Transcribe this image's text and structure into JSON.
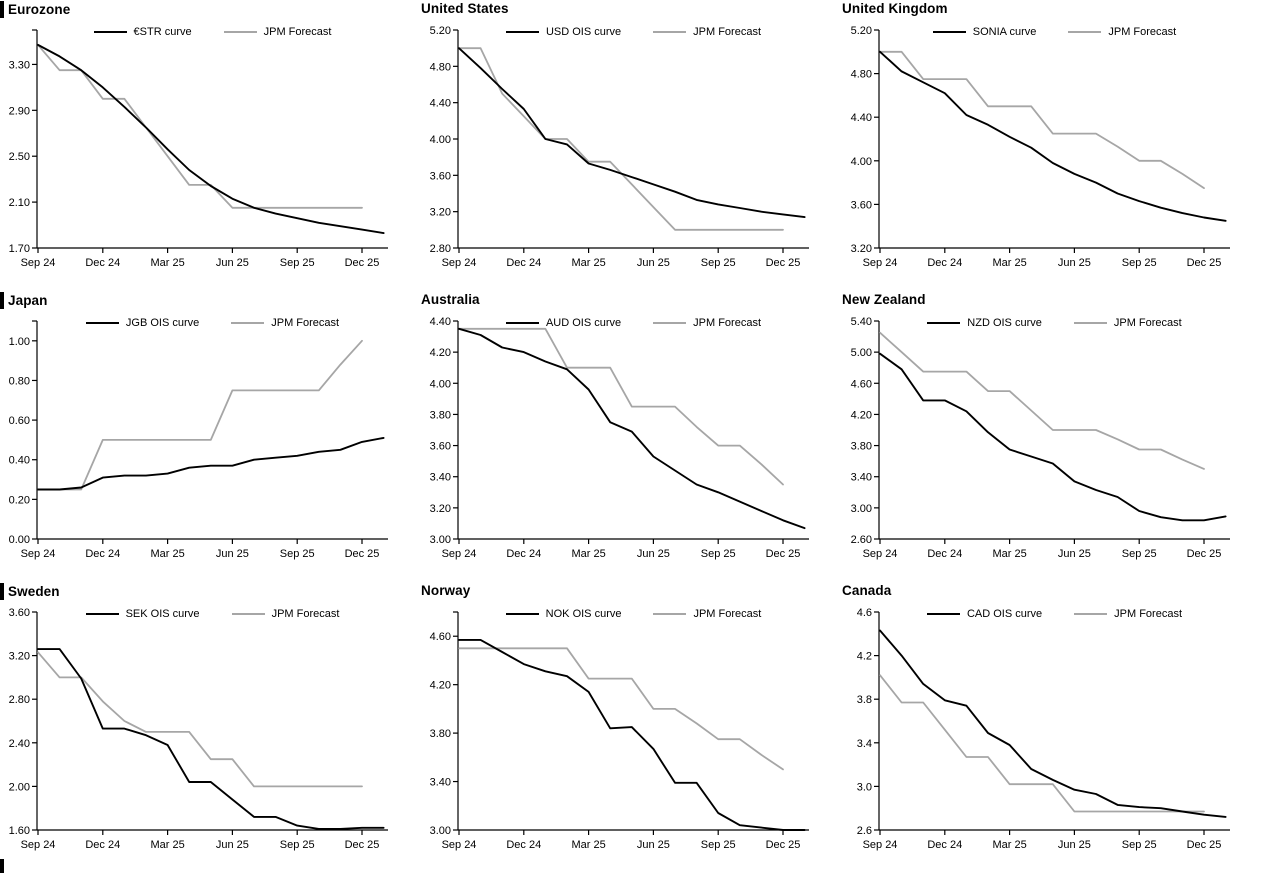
{
  "colors": {
    "curve": "#000000",
    "forecast": "#a6a6a6",
    "background": "#ffffff"
  },
  "x_axis": {
    "unit": "month",
    "tick_labels": [
      "Sep 24",
      "Dec 24",
      "Mar 25",
      "Jun 25",
      "Sep 25",
      "Dec 25"
    ],
    "tick_indices": [
      0,
      3,
      6,
      9,
      12,
      15
    ],
    "note_points": "monthly from Sep 2024; market curves extend one month past Dec 2025"
  },
  "chart_data": [
    {
      "type": "line",
      "title": "Eurozone",
      "y_ticks": [
        1.7,
        2.1,
        2.5,
        2.9,
        3.3
      ],
      "axis_min": 1.7,
      "axis_max": 3.6,
      "y_decimals": 2,
      "grid": false,
      "legend_position": "top",
      "series": [
        {
          "name": "€STR curve",
          "color": "#000000",
          "values": [
            3.47,
            3.37,
            3.25,
            3.1,
            2.93,
            2.75,
            2.56,
            2.38,
            2.24,
            2.13,
            2.05,
            2.0,
            1.96,
            1.92,
            1.89,
            1.86,
            1.83
          ]
        },
        {
          "name": "JPM Forecast",
          "color": "#a6a6a6",
          "values": [
            3.47,
            3.25,
            3.25,
            3.0,
            3.0,
            2.75,
            2.5,
            2.25,
            2.25,
            2.05,
            2.05,
            2.05,
            2.05,
            2.05,
            2.05,
            2.05
          ]
        }
      ]
    },
    {
      "type": "line",
      "title": "United States",
      "y_ticks": [
        2.8,
        3.2,
        3.6,
        4.0,
        4.4,
        4.8,
        5.2
      ],
      "axis_min": 2.8,
      "axis_max": 5.2,
      "y_decimals": 2,
      "grid": false,
      "legend_position": "top",
      "series": [
        {
          "name": "USD OIS curve",
          "color": "#000000",
          "values": [
            5.0,
            4.78,
            4.55,
            4.33,
            4.0,
            3.94,
            3.73,
            3.66,
            3.58,
            3.5,
            3.42,
            3.33,
            3.28,
            3.24,
            3.2,
            3.17,
            3.14
          ]
        },
        {
          "name": "JPM Forecast",
          "color": "#a6a6a6",
          "values": [
            5.0,
            5.0,
            4.5,
            4.25,
            4.0,
            4.0,
            3.75,
            3.75,
            3.5,
            3.25,
            3.0,
            3.0,
            3.0,
            3.0,
            3.0,
            3.0
          ]
        }
      ]
    },
    {
      "type": "line",
      "title": "United Kingdom",
      "y_ticks": [
        3.2,
        3.6,
        4.0,
        4.4,
        4.8,
        5.2
      ],
      "axis_min": 3.2,
      "axis_max": 5.2,
      "y_decimals": 2,
      "grid": false,
      "legend_position": "top",
      "series": [
        {
          "name": "SONIA curve",
          "color": "#000000",
          "values": [
            5.0,
            4.82,
            4.72,
            4.62,
            4.42,
            4.33,
            4.22,
            4.12,
            3.98,
            3.88,
            3.8,
            3.7,
            3.63,
            3.57,
            3.52,
            3.48,
            3.45
          ]
        },
        {
          "name": "JPM Forecast",
          "color": "#a6a6a6",
          "values": [
            5.0,
            5.0,
            4.75,
            4.75,
            4.75,
            4.5,
            4.5,
            4.5,
            4.25,
            4.25,
            4.25,
            4.13,
            4.0,
            4.0,
            3.88,
            3.75
          ]
        }
      ]
    },
    {
      "type": "line",
      "title": "Japan",
      "y_ticks": [
        0.0,
        0.2,
        0.4,
        0.6,
        0.8,
        1.0
      ],
      "axis_min": 0.0,
      "axis_max": 1.1,
      "y_decimals": 2,
      "grid": false,
      "legend_position": "top",
      "series": [
        {
          "name": "JGB OIS curve",
          "color": "#000000",
          "values": [
            0.25,
            0.25,
            0.26,
            0.31,
            0.32,
            0.32,
            0.33,
            0.36,
            0.37,
            0.37,
            0.4,
            0.41,
            0.42,
            0.44,
            0.45,
            0.49,
            0.51
          ]
        },
        {
          "name": "JPM Forecast",
          "color": "#a6a6a6",
          "values": [
            0.25,
            0.25,
            0.25,
            0.5,
            0.5,
            0.5,
            0.5,
            0.5,
            0.5,
            0.75,
            0.75,
            0.75,
            0.75,
            0.75,
            0.88,
            1.0
          ]
        }
      ]
    },
    {
      "type": "line",
      "title": "Australia",
      "y_ticks": [
        3.0,
        3.2,
        3.4,
        3.6,
        3.8,
        4.0,
        4.2,
        4.4
      ],
      "axis_min": 3.0,
      "axis_max": 4.4,
      "y_decimals": 2,
      "grid": false,
      "legend_position": "top",
      "series": [
        {
          "name": "AUD OIS curve",
          "color": "#000000",
          "values": [
            4.35,
            4.31,
            4.23,
            4.2,
            4.14,
            4.09,
            3.96,
            3.75,
            3.69,
            3.53,
            3.44,
            3.35,
            3.3,
            3.24,
            3.18,
            3.12,
            3.07
          ]
        },
        {
          "name": "JPM Forecast",
          "color": "#a6a6a6",
          "values": [
            4.35,
            4.35,
            4.35,
            4.35,
            4.35,
            4.1,
            4.1,
            4.1,
            3.85,
            3.85,
            3.85,
            3.72,
            3.6,
            3.6,
            3.48,
            3.35
          ]
        }
      ]
    },
    {
      "type": "line",
      "title": "New Zealand",
      "y_ticks": [
        2.6,
        3.0,
        3.4,
        3.8,
        4.2,
        4.6,
        5.0,
        5.4
      ],
      "axis_min": 2.6,
      "axis_max": 5.4,
      "y_decimals": 2,
      "grid": false,
      "legend_position": "top",
      "series": [
        {
          "name": "NZD OIS curve",
          "color": "#000000",
          "values": [
            4.98,
            4.78,
            4.38,
            4.38,
            4.24,
            3.97,
            3.75,
            3.66,
            3.57,
            3.34,
            3.23,
            3.14,
            2.96,
            2.88,
            2.84,
            2.84,
            2.89
          ]
        },
        {
          "name": "JPM Forecast",
          "color": "#a6a6a6",
          "values": [
            5.25,
            5.0,
            4.75,
            4.75,
            4.75,
            4.5,
            4.5,
            4.25,
            4.0,
            4.0,
            4.0,
            3.88,
            3.75,
            3.75,
            3.62,
            3.5
          ]
        }
      ]
    },
    {
      "type": "line",
      "title": "Sweden",
      "y_ticks": [
        1.6,
        2.0,
        2.4,
        2.8,
        3.2,
        3.6
      ],
      "axis_min": 1.6,
      "axis_max": 3.6,
      "y_decimals": 2,
      "grid": false,
      "legend_position": "top",
      "series": [
        {
          "name": "SEK OIS curve",
          "color": "#000000",
          "values": [
            3.26,
            3.26,
            2.99,
            2.53,
            2.53,
            2.47,
            2.38,
            2.04,
            2.04,
            1.88,
            1.72,
            1.72,
            1.64,
            1.61,
            1.61,
            1.62,
            1.62
          ]
        },
        {
          "name": "JPM Forecast",
          "color": "#a6a6a6",
          "values": [
            3.23,
            3.0,
            3.0,
            2.78,
            2.6,
            2.5,
            2.5,
            2.5,
            2.25,
            2.25,
            2.0,
            2.0,
            2.0,
            2.0,
            2.0,
            2.0
          ]
        }
      ]
    },
    {
      "type": "line",
      "title": "Norway",
      "y_ticks": [
        3.0,
        3.4,
        3.8,
        4.2,
        4.6
      ],
      "axis_min": 3.0,
      "axis_max": 4.8,
      "y_decimals": 2,
      "grid": false,
      "legend_position": "top",
      "series": [
        {
          "name": "NOK OIS curve",
          "color": "#000000",
          "values": [
            4.57,
            4.57,
            4.47,
            4.37,
            4.31,
            4.27,
            4.14,
            3.84,
            3.85,
            3.67,
            3.39,
            3.39,
            3.14,
            3.04,
            3.02,
            3.0,
            3.0
          ]
        },
        {
          "name": "JPM Forecast",
          "color": "#a6a6a6",
          "values": [
            4.5,
            4.5,
            4.5,
            4.5,
            4.5,
            4.5,
            4.25,
            4.25,
            4.25,
            4.0,
            4.0,
            3.88,
            3.75,
            3.75,
            3.62,
            3.5
          ]
        }
      ]
    },
    {
      "type": "line",
      "title": "Canada",
      "y_ticks": [
        2.6,
        3.0,
        3.4,
        3.8,
        4.2,
        4.6
      ],
      "axis_min": 2.6,
      "axis_max": 4.6,
      "y_decimals": 1,
      "grid": false,
      "legend_position": "top",
      "series": [
        {
          "name": "CAD OIS curve",
          "color": "#000000",
          "values": [
            4.43,
            4.2,
            3.94,
            3.79,
            3.74,
            3.49,
            3.38,
            3.16,
            3.06,
            2.97,
            2.93,
            2.83,
            2.81,
            2.8,
            2.77,
            2.74,
            2.72
          ]
        },
        {
          "name": "JPM Forecast",
          "color": "#a6a6a6",
          "values": [
            4.02,
            3.77,
            3.77,
            3.52,
            3.27,
            3.27,
            3.02,
            3.02,
            3.02,
            2.77,
            2.77,
            2.77,
            2.77,
            2.77,
            2.77,
            2.77
          ]
        }
      ]
    }
  ]
}
